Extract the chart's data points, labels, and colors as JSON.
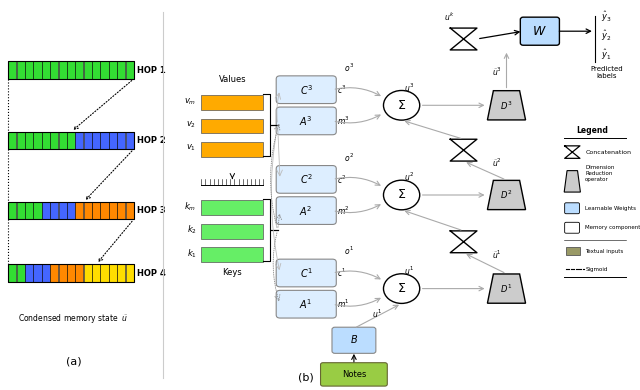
{
  "fig_width": 6.4,
  "fig_height": 3.9,
  "bg_color": "#ffffff",
  "part_a_label": "(a)",
  "part_b_label": "(b)",
  "condensed_label": "Condensed memory state  $\\widetilde{u}$"
}
